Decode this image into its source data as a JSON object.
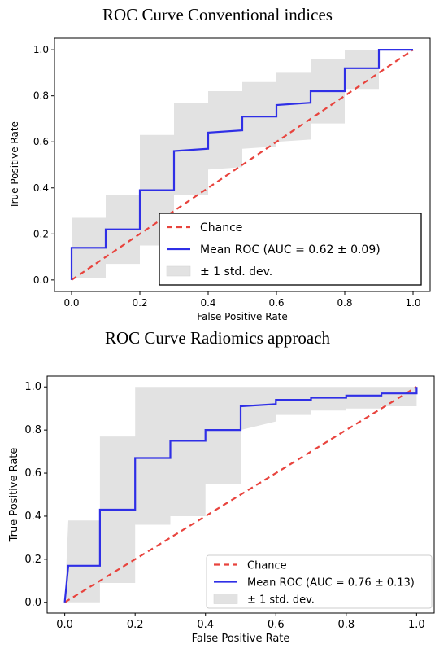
{
  "chart_data": [
    {
      "type": "line",
      "title": "ROC Curve Conventional indices",
      "xlabel": "False Positive Rate",
      "ylabel": "True Positive Rate",
      "xlim": [
        -0.05,
        1.05
      ],
      "ylim": [
        -0.05,
        1.05
      ],
      "xticks": [
        "0.0",
        "0.2",
        "0.4",
        "0.6",
        "0.8",
        "1.0"
      ],
      "yticks": [
        "0.0",
        "0.2",
        "0.4",
        "0.6",
        "0.8",
        "1.0"
      ],
      "legend": {
        "placement": "lower-right",
        "entries": [
          "Chance",
          "Mean ROC (AUC = 0.62 ± 0.09)",
          "± 1 std. dev."
        ]
      },
      "colors": {
        "chance": "#e8433d",
        "mean": "#2f2fe6",
        "band": "#e2e2e2"
      },
      "series": [
        {
          "name": "Chance",
          "style": "dashed",
          "x": [
            0,
            1
          ],
          "y": [
            0,
            1
          ]
        },
        {
          "name": "Mean ROC (AUC = 0.62 ± 0.09)",
          "style": "solid",
          "x": [
            0,
            0,
            0.1,
            0.1,
            0.2,
            0.2,
            0.3,
            0.3,
            0.4,
            0.4,
            0.5,
            0.5,
            0.6,
            0.6,
            0.7,
            0.7,
            0.8,
            0.8,
            0.9,
            0.9,
            1.0
          ],
          "y": [
            0,
            0.14,
            0.14,
            0.22,
            0.22,
            0.39,
            0.39,
            0.56,
            0.57,
            0.64,
            0.65,
            0.71,
            0.71,
            0.76,
            0.77,
            0.82,
            0.82,
            0.92,
            0.92,
            1.0,
            1.0
          ]
        },
        {
          "name": "± 1 std. dev.",
          "style": "band",
          "x": [
            0,
            0,
            0.1,
            0.1,
            0.2,
            0.2,
            0.3,
            0.3,
            0.4,
            0.4,
            0.5,
            0.5,
            0.6,
            0.6,
            0.7,
            0.7,
            0.8,
            0.8,
            0.9,
            0.9,
            1.0
          ],
          "lower": [
            0,
            0.01,
            0.01,
            0.07,
            0.07,
            0.15,
            0.15,
            0.37,
            0.37,
            0.48,
            0.49,
            0.57,
            0.58,
            0.6,
            0.61,
            0.68,
            0.68,
            0.83,
            0.83,
            1.0,
            1.0
          ],
          "upper": [
            0,
            0.27,
            0.27,
            0.37,
            0.37,
            0.63,
            0.63,
            0.77,
            0.77,
            0.82,
            0.82,
            0.86,
            0.86,
            0.9,
            0.9,
            0.96,
            0.96,
            1.0,
            1.0,
            1.0,
            1.0
          ]
        }
      ]
    },
    {
      "type": "line",
      "title": "ROC Curve Radiomics approach",
      "xlabel": "False Positive Rate",
      "ylabel": "True Positive Rate",
      "xlim": [
        -0.05,
        1.05
      ],
      "ylim": [
        -0.05,
        1.05
      ],
      "xticks": [
        "0.0",
        "0.2",
        "0.4",
        "0.6",
        "0.8",
        "1.0"
      ],
      "yticks": [
        "0.0",
        "0.2",
        "0.4",
        "0.6",
        "0.8",
        "1.0"
      ],
      "legend": {
        "placement": "lower-right",
        "entries": [
          "Chance",
          "Mean ROC (AUC = 0.76 ± 0.13)",
          "± 1 std. dev."
        ]
      },
      "colors": {
        "chance": "#e8433d",
        "mean": "#2f2fe6",
        "band": "#e2e2e2"
      },
      "series": [
        {
          "name": "Chance",
          "style": "dashed",
          "x": [
            0,
            1
          ],
          "y": [
            0,
            1
          ]
        },
        {
          "name": "Mean ROC (AUC = 0.76 ± 0.13)",
          "style": "solid",
          "x": [
            0,
            0.01,
            0.1,
            0.1,
            0.2,
            0.2,
            0.3,
            0.3,
            0.4,
            0.4,
            0.5,
            0.5,
            0.6,
            0.6,
            0.7,
            0.7,
            0.8,
            0.8,
            0.9,
            0.9,
            1.0,
            1.0
          ],
          "y": [
            0,
            0.17,
            0.17,
            0.43,
            0.43,
            0.67,
            0.67,
            0.75,
            0.75,
            0.8,
            0.8,
            0.91,
            0.92,
            0.94,
            0.94,
            0.95,
            0.95,
            0.96,
            0.96,
            0.97,
            0.97,
            1.0
          ]
        },
        {
          "name": "± 1 std. dev.",
          "style": "band",
          "x": [
            0,
            0.01,
            0.1,
            0.1,
            0.2,
            0.2,
            0.3,
            0.3,
            0.4,
            0.4,
            0.5,
            0.5,
            0.6,
            0.6,
            0.7,
            0.7,
            0.8,
            0.8,
            0.9,
            0.9,
            1.0,
            1.0
          ],
          "lower": [
            0,
            0,
            0,
            0.09,
            0.09,
            0.36,
            0.36,
            0.4,
            0.4,
            0.55,
            0.55,
            0.8,
            0.84,
            0.87,
            0.87,
            0.89,
            0.89,
            0.9,
            0.9,
            0.91,
            0.91,
            1.0
          ],
          "upper": [
            0,
            0.38,
            0.38,
            0.77,
            0.77,
            1.0,
            1.0,
            1.0,
            1.0,
            1.0,
            1.0,
            1.0,
            1.0,
            1.0,
            1.0,
            1.0,
            1.0,
            1.0,
            1.0,
            1.0,
            1.0,
            1.0
          ]
        }
      ]
    }
  ]
}
